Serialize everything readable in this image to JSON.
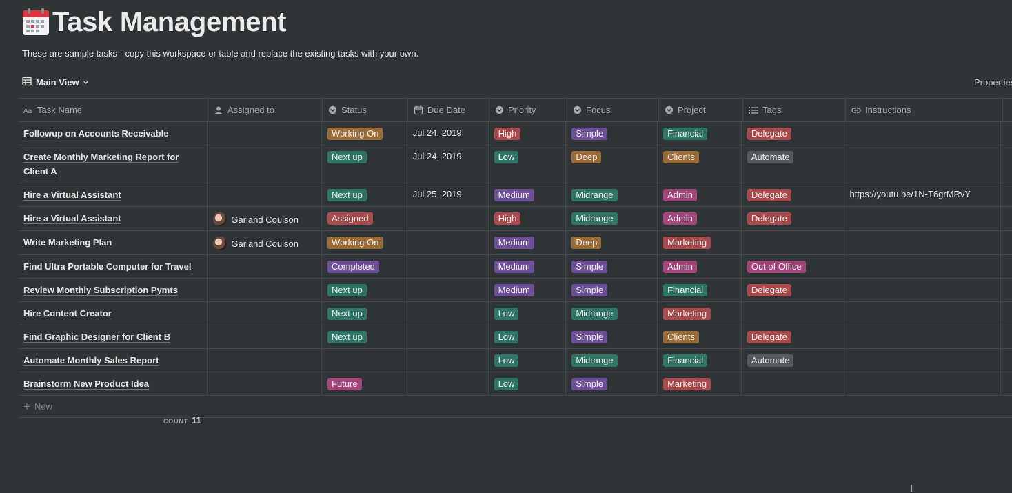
{
  "page": {
    "title": "Task Management",
    "subtitle": "These are sample tasks - copy this workspace or table and replace the existing tasks with your own."
  },
  "view": {
    "label": "Main View",
    "properties_label": "Properties"
  },
  "columns": [
    {
      "label": "Task Name",
      "icon": "text-icon"
    },
    {
      "label": "Assigned to",
      "icon": "person-icon"
    },
    {
      "label": "Status",
      "icon": "select-icon"
    },
    {
      "label": "Due Date",
      "icon": "calendar-icon"
    },
    {
      "label": "Priority",
      "icon": "select-icon"
    },
    {
      "label": "Focus",
      "icon": "select-icon"
    },
    {
      "label": "Project",
      "icon": "select-icon"
    },
    {
      "label": "Tags",
      "icon": "list-icon"
    },
    {
      "label": "Instructions",
      "icon": "link-icon"
    }
  ],
  "rows": [
    {
      "name": "Followup on Accounts Receivable",
      "assigned": "",
      "status": "Working On",
      "due": "Jul 24, 2019",
      "priority": "High",
      "focus": "Simple",
      "project": "Financial",
      "tags": "Delegate",
      "instructions": ""
    },
    {
      "name": "Create Monthly Marketing Report for Client A",
      "assigned": "",
      "status": "Next up",
      "due": "Jul 24, 2019",
      "priority": "Low",
      "focus": "Deep",
      "project": "Clients",
      "tags": "Automate",
      "instructions": ""
    },
    {
      "name": "Hire a Virtual Assistant",
      "assigned": "",
      "status": "Next up",
      "due": "Jul 25, 2019",
      "priority": "Medium",
      "focus": "Midrange",
      "project": "Admin",
      "tags": "Delegate",
      "instructions": "https://youtu.be/1N-T6grMRvY"
    },
    {
      "name": "Hire a Virtual Assistant",
      "assigned": "Garland Coulson",
      "status": "Assigned",
      "due": "",
      "priority": "High",
      "focus": "Midrange",
      "project": "Admin",
      "tags": "Delegate",
      "instructions": ""
    },
    {
      "name": "Write Marketing Plan",
      "assigned": "Garland Coulson",
      "status": "Working On",
      "due": "",
      "priority": "Medium",
      "focus": "Deep",
      "project": "Marketing",
      "tags": "",
      "instructions": ""
    },
    {
      "name": "Find Ultra Portable Computer for Travel",
      "assigned": "",
      "status": "Completed",
      "due": "",
      "priority": "Medium",
      "focus": "Simple",
      "project": "Admin",
      "tags": "Out of Office",
      "instructions": ""
    },
    {
      "name": "Review Monthly Subscription Pymts",
      "assigned": "",
      "status": "Next up",
      "due": "",
      "priority": "Medium",
      "focus": "Simple",
      "project": "Financial",
      "tags": "Delegate",
      "instructions": ""
    },
    {
      "name": "Hire Content Creator",
      "assigned": "",
      "status": "Next up",
      "due": "",
      "priority": "Low",
      "focus": "Midrange",
      "project": "Marketing",
      "tags": "",
      "instructions": ""
    },
    {
      "name": "Find Graphic Designer for Client B",
      "assigned": "",
      "status": "Next up",
      "due": "",
      "priority": "Low",
      "focus": "Simple",
      "project": "Clients",
      "tags": "Delegate",
      "instructions": ""
    },
    {
      "name": "Automate Monthly Sales Report",
      "assigned": "",
      "status": "",
      "due": "",
      "priority": "Low",
      "focus": "Midrange",
      "project": "Financial",
      "tags": "Automate",
      "instructions": ""
    },
    {
      "name": "Brainstorm New Product Idea",
      "assigned": "",
      "status": "Future",
      "due": "",
      "priority": "Low",
      "focus": "Simple",
      "project": "Marketing",
      "tags": "",
      "instructions": ""
    }
  ],
  "tag_colors": {
    "Working On": "#9a6b37",
    "Next up": "#2f7566",
    "Assigned": "#a8494b",
    "Completed": "#6c4f96",
    "Future": "#a2457a",
    "High": "#a8494b",
    "Low": "#2f7566",
    "Medium": "#6c4f96",
    "Simple": "#6c4f96",
    "Deep": "#9a6b37",
    "Midrange": "#2f7566",
    "Financial": "#2f7566",
    "Clients": "#9a6b37",
    "Admin": "#a2457a",
    "Marketing": "#a8494b",
    "Delegate": "#a8494b",
    "Automate": "#55595c",
    "Out of Office": "#a2457a"
  },
  "footer": {
    "new_label": "New",
    "count_label": "COUNT",
    "count_value": "11"
  }
}
